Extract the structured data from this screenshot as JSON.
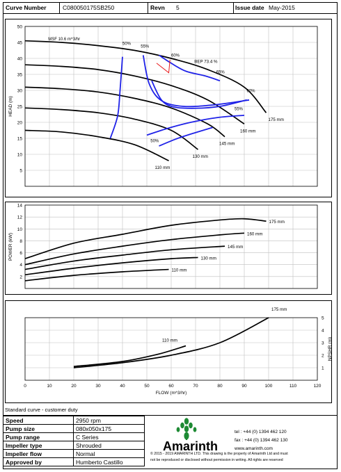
{
  "header": {
    "curve_number_label": "Curve Number",
    "curve_number": "C080050175SB250",
    "revn_label": "Revn",
    "revn": "5",
    "issue_date_label": "Issue date",
    "issue_date": "May-2015"
  },
  "note": "Standard curve - customer duty",
  "info": [
    {
      "key": "Speed",
      "value": "2950 rpm"
    },
    {
      "key": "Pump size",
      "value": "080x050x175"
    },
    {
      "key": "Pump range",
      "value": "C Series"
    },
    {
      "key": "Impeller type",
      "value": "Shrouded"
    },
    {
      "key": "Impeller flow",
      "value": "Normal"
    },
    {
      "key": "Approved by",
      "value": "Humberto Castillo"
    }
  ],
  "company": {
    "name": "Amarinth",
    "tel": "tel : +44 (0) 1394 462 120",
    "fax": "fax : +44 (0) 1394 462 130",
    "web": "www.amarinth.com",
    "copyright_1": "© 2015 - 2019 AMARINTH LTD. This drawing is the property of Amarinth Ltd and must",
    "copyright_2": "not be reproduced or disclosed without permission in writing. All rights are reserved"
  },
  "colors": {
    "curve": "#000000",
    "efficiency": "#1f22e8",
    "bep_marker": "#e8181a",
    "logo": "#1e8a34",
    "grid": "#bfbfbf"
  },
  "chart_data": [
    {
      "type": "line",
      "id": "head",
      "ylabel": "HEAD (m)",
      "xlim": [
        0,
        120
      ],
      "ylim": [
        0,
        50
      ],
      "yticks": [
        5,
        10,
        15,
        20,
        25,
        30,
        35,
        40,
        45,
        50
      ],
      "grid": true,
      "title_note": "MSF 10.6 m^3/hr",
      "bep_label": "BEP 73.4 %",
      "series": [
        {
          "name": "175 mm",
          "x": [
            0,
            15,
            30,
            45,
            60,
            75,
            90,
            99
          ],
          "y": [
            45.5,
            45,
            44,
            42.5,
            40,
            36.5,
            31,
            23
          ]
        },
        {
          "name": "160 mm",
          "x": [
            0,
            15,
            30,
            45,
            60,
            75,
            90
          ],
          "y": [
            38,
            37.5,
            36.5,
            34.5,
            31.5,
            27,
            19.5
          ]
        },
        {
          "name": "145 mm",
          "x": [
            0,
            15,
            30,
            45,
            60,
            75,
            82
          ],
          "y": [
            31,
            30.5,
            29.5,
            27.5,
            24.5,
            19.5,
            15.5
          ]
        },
        {
          "name": "130 mm",
          "x": [
            0,
            15,
            30,
            45,
            60,
            71
          ],
          "y": [
            24.5,
            24,
            23,
            21,
            17.5,
            11.5
          ]
        },
        {
          "name": "110 mm",
          "x": [
            0,
            15,
            30,
            45,
            59
          ],
          "y": [
            17.5,
            17,
            15.5,
            13,
            8
          ]
        }
      ],
      "efficiency_labels": [
        "50%",
        "55%",
        "60%",
        "65%",
        "60%",
        "55%",
        "50%"
      ]
    },
    {
      "type": "line",
      "id": "power",
      "ylabel": "POWER (kW)",
      "xlim": [
        0,
        120
      ],
      "ylim": [
        0,
        14
      ],
      "yticks": [
        2,
        4,
        6,
        8,
        10,
        12,
        14
      ],
      "grid": true,
      "series": [
        {
          "name": "175 mm",
          "x": [
            0,
            20,
            40,
            60,
            80,
            90,
            99
          ],
          "y": [
            5,
            7.6,
            9.1,
            10.6,
            11.5,
            11.7,
            11.3
          ]
        },
        {
          "name": "160 mm",
          "x": [
            0,
            20,
            40,
            60,
            80,
            90
          ],
          "y": [
            4,
            5.8,
            7.1,
            8.2,
            9.0,
            9.3
          ]
        },
        {
          "name": "145 mm",
          "x": [
            0,
            20,
            40,
            60,
            82
          ],
          "y": [
            3.2,
            4.6,
            5.6,
            6.5,
            7.1
          ]
        },
        {
          "name": "130 mm",
          "x": [
            0,
            20,
            40,
            60,
            71
          ],
          "y": [
            2.3,
            3.4,
            4.3,
            5.0,
            5.2
          ]
        },
        {
          "name": "110 mm",
          "x": [
            0,
            20,
            40,
            59
          ],
          "y": [
            1.3,
            2.2,
            2.8,
            3.2
          ]
        }
      ]
    },
    {
      "type": "line",
      "id": "npshr",
      "ylabel": "NPSHR (m)",
      "xlabel": "FLOW (m^3/hr)",
      "xlim": [
        0,
        120
      ],
      "xticks": [
        0,
        10,
        20,
        30,
        40,
        50,
        60,
        70,
        80,
        90,
        100,
        110,
        120
      ],
      "ylim": [
        0,
        5
      ],
      "yticks": [
        1,
        2,
        3,
        4,
        5
      ],
      "grid": true,
      "series": [
        {
          "name": "175 mm",
          "x": [
            20,
            40,
            60,
            80,
            100
          ],
          "y": [
            1.0,
            1.4,
            2.0,
            3.0,
            5.0
          ]
        },
        {
          "name": "110 mm",
          "x": [
            20,
            40,
            55,
            66
          ],
          "y": [
            1.1,
            1.5,
            2.1,
            2.75
          ]
        }
      ]
    }
  ]
}
